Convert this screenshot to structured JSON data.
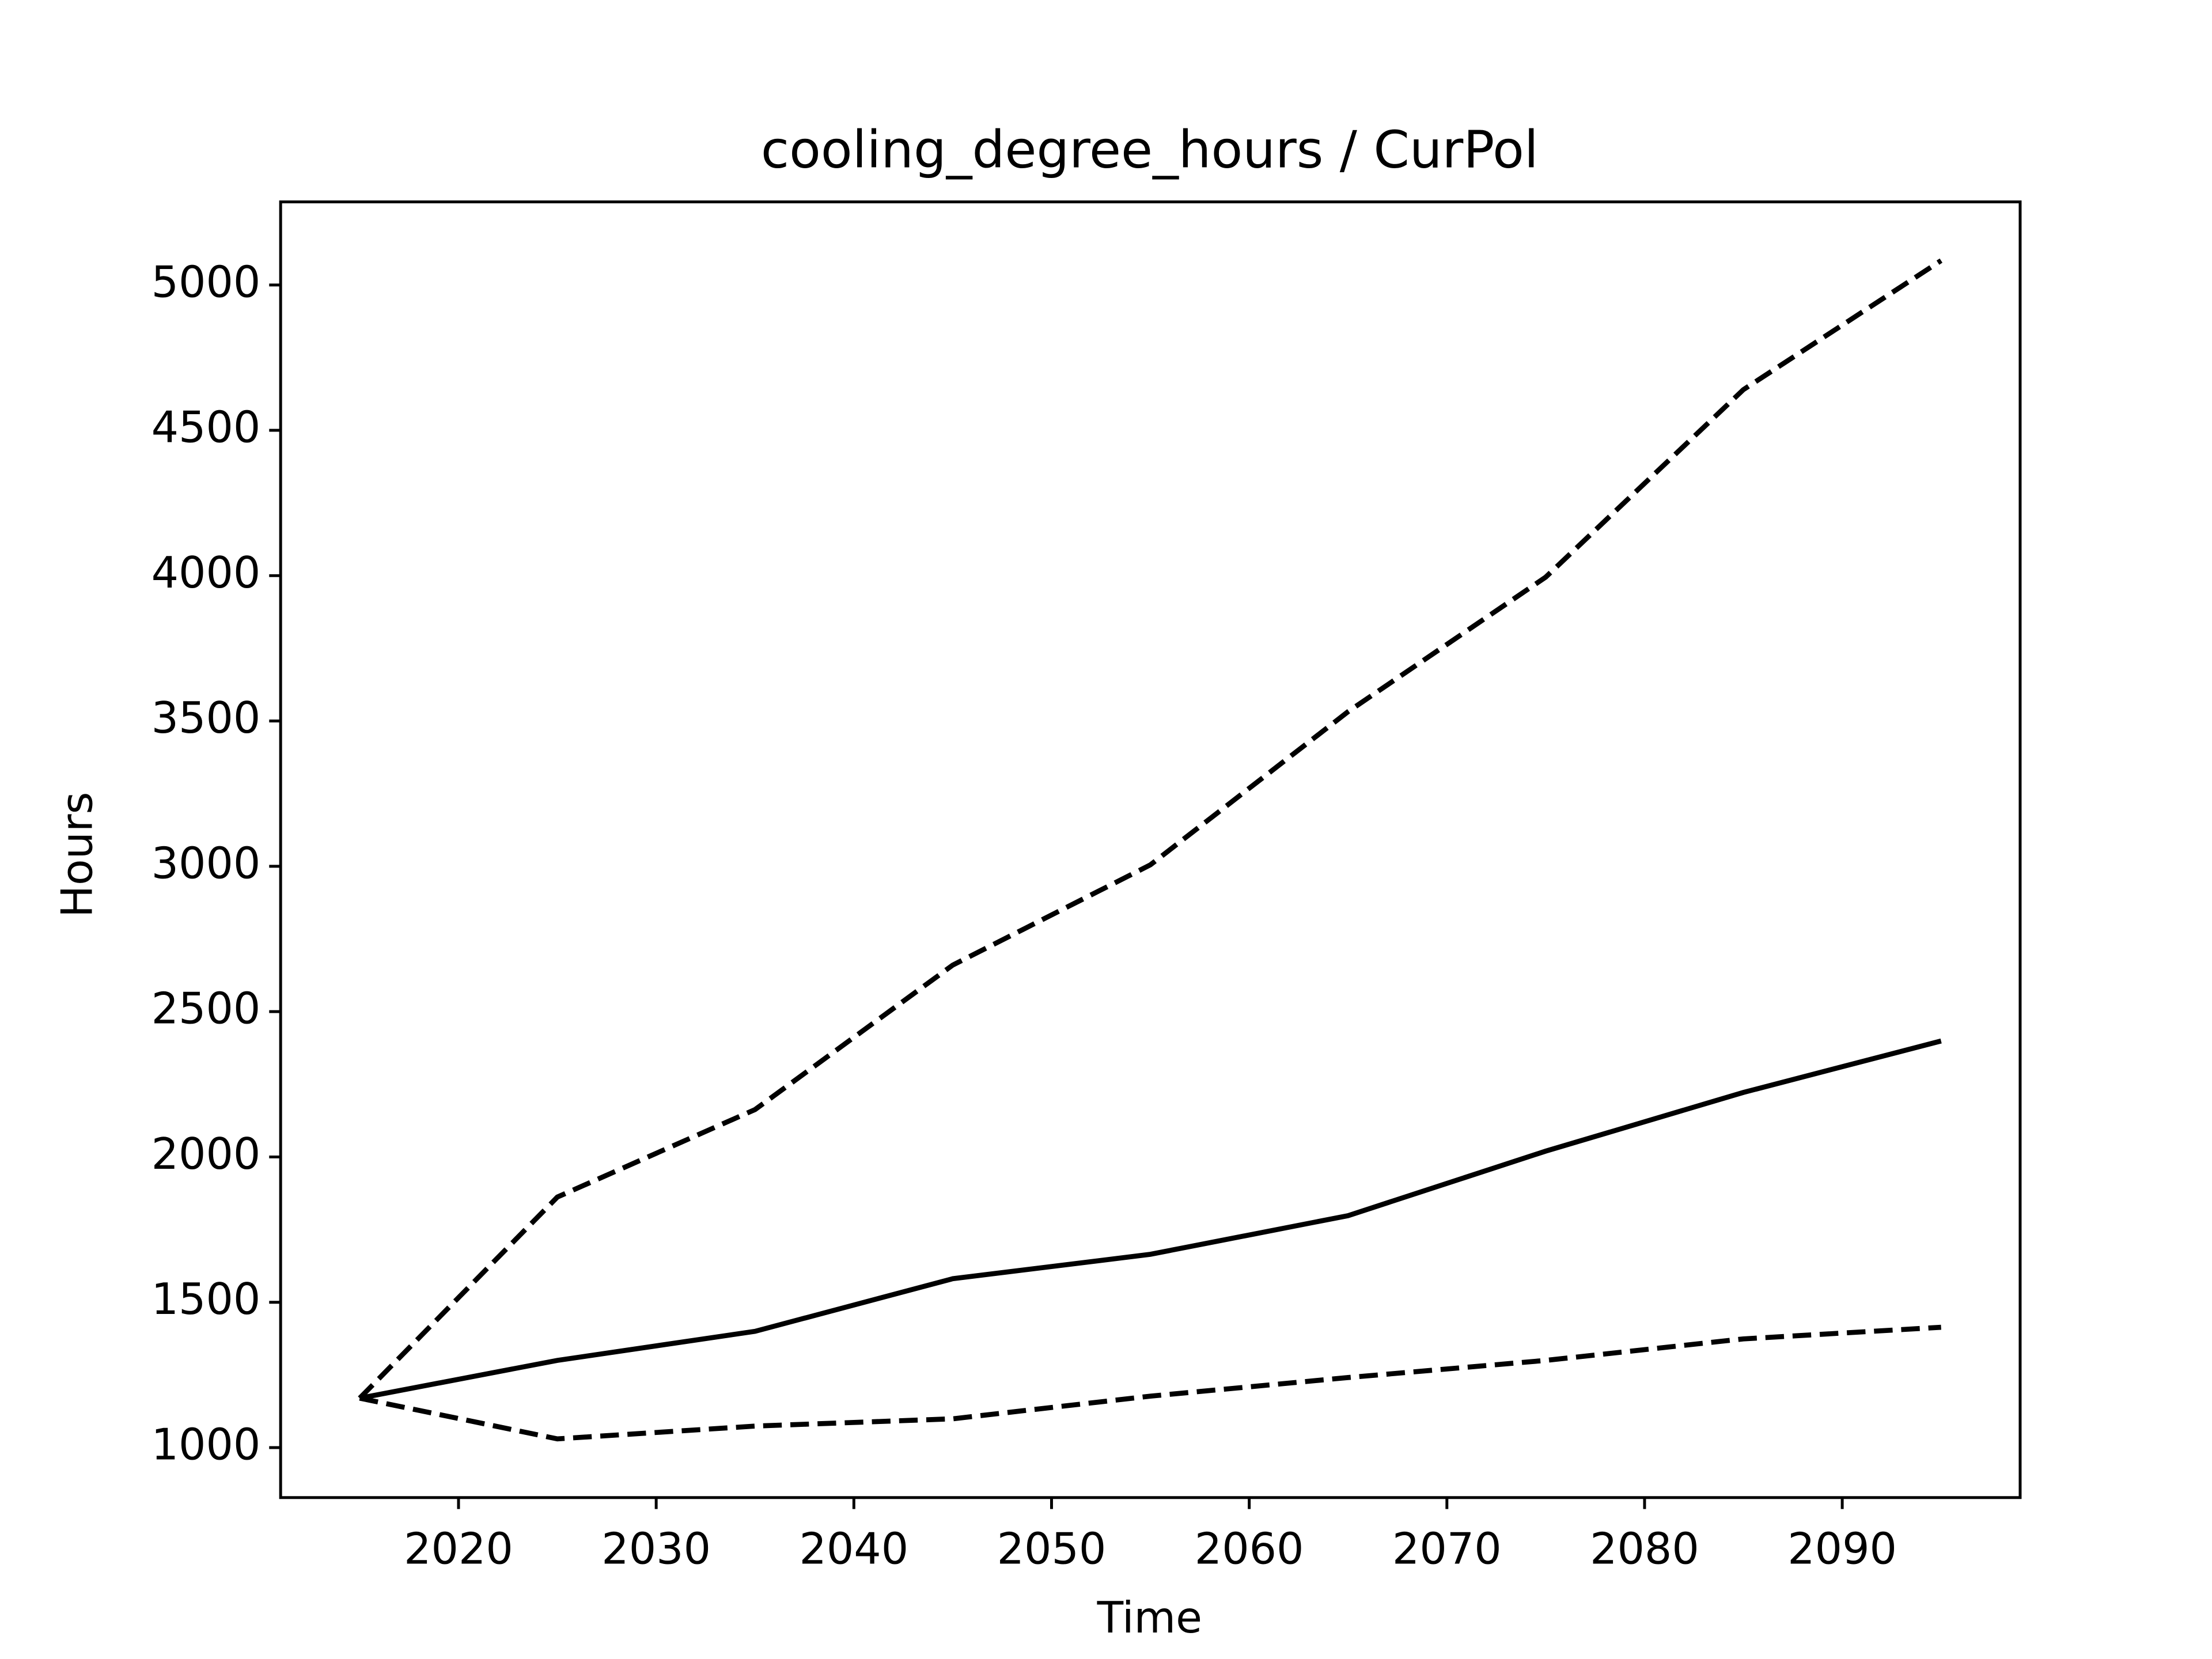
{
  "chart_data": {
    "type": "line",
    "title": "cooling_degree_hours / CurPol",
    "x_label": "Time",
    "y_label": "Hours",
    "x": [
      2015,
      2025,
      2035,
      2045,
      2055,
      2065,
      2075,
      2085,
      2095
    ],
    "series": [
      {
        "color": "#000000",
        "linestyle": "dashed",
        "values": [
          1170,
          1862,
          2163,
          2660,
          3005,
          3532,
          3995,
          4640,
          5084
        ]
      },
      {
        "color": "#000000",
        "linestyle": "solid",
        "values": [
          1170,
          1300,
          1400,
          1581,
          1665,
          1798,
          2020,
          2222,
          2399
        ]
      },
      {
        "color": "#000000",
        "linestyle": "dashed",
        "values": [
          1170,
          1030,
          1074,
          1099,
          1177,
          1241,
          1300,
          1374,
          1414
        ]
      }
    ],
    "xlim": [
      2011,
      2099
    ],
    "xticks": [
      2020,
      2030,
      2040,
      2050,
      2060,
      2070,
      2080,
      2090
    ],
    "ylim": [
      828,
      5286
    ],
    "yticks": [
      1000,
      1500,
      2000,
      2500,
      3000,
      3500,
      4000,
      4500,
      5000
    ],
    "grid": false
  }
}
